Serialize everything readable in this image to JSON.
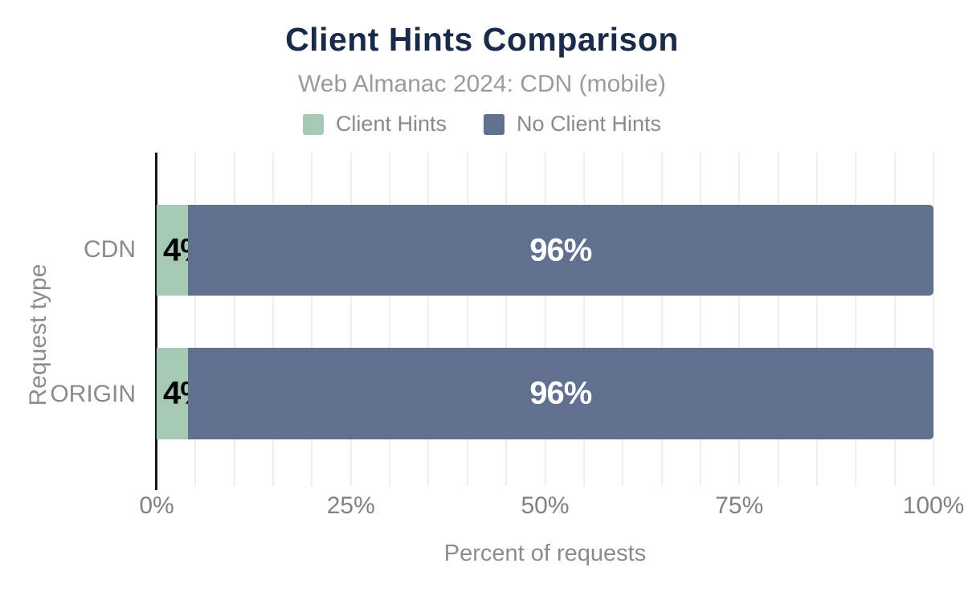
{
  "header": {
    "title": "Client Hints Comparison",
    "subtitle": "Web Almanac 2024: CDN (mobile)"
  },
  "chart_data": {
    "type": "bar",
    "orientation": "horizontal",
    "stacked": true,
    "title": "Client Hints Comparison",
    "subtitle": "Web Almanac 2024: CDN (mobile)",
    "categories": [
      "CDN",
      "ORIGIN"
    ],
    "series": [
      {
        "name": "Client Hints",
        "color": "#a5c9b5",
        "values": [
          4,
          4
        ],
        "labels": [
          "4%",
          "4%"
        ]
      },
      {
        "name": "No Client Hints",
        "color": "#60718f",
        "values": [
          96,
          96
        ],
        "labels": [
          "96%",
          "96%"
        ]
      }
    ],
    "xlabel": "Percent of requests",
    "ylabel": "Request type",
    "xlim": [
      0,
      100
    ],
    "x_ticks": [
      "0%",
      "25%",
      "50%",
      "75%",
      "100%"
    ],
    "x_tick_values": [
      0,
      25,
      50,
      75,
      100
    ],
    "gridline_step": 5,
    "grid": true,
    "legend_position": "top"
  },
  "colors": {
    "title": "#1a2b49",
    "subtitle": "#9b9b9b",
    "legend_text": "#8a8a8a",
    "axis_text": "#7e8381",
    "gridline": "#efefef",
    "axis_line": "#161616",
    "value_label_light": "#ffffff",
    "value_label_dark": "#000000"
  }
}
